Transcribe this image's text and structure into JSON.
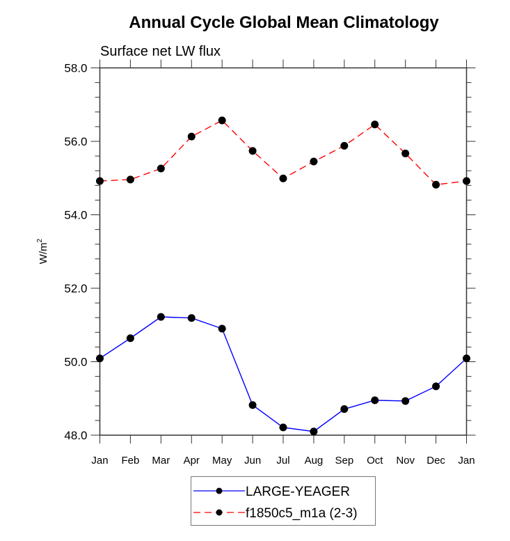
{
  "chart_data": {
    "type": "line",
    "title": "Annual Cycle Global Mean Climatology",
    "subtitle": "Surface net LW flux",
    "xlabel": "",
    "ylabel": "W/m",
    "ylabel_superscript": "2",
    "categories": [
      "Jan",
      "Feb",
      "Mar",
      "Apr",
      "May",
      "Jun",
      "Jul",
      "Aug",
      "Sep",
      "Oct",
      "Nov",
      "Dec",
      "Jan"
    ],
    "ylim": [
      48.0,
      58.0
    ],
    "yticks": [
      "48.0",
      "50.0",
      "52.0",
      "54.0",
      "56.0",
      "58.0"
    ],
    "ytick_values": [
      48,
      50,
      52,
      54,
      56,
      58
    ],
    "yminor_step": 0.4,
    "grid": false,
    "legend_position": "bottom-center",
    "series": [
      {
        "name": "LARGE-YEAGER",
        "color": "#0000ff",
        "dash": "solid",
        "marker": "filled-circle",
        "values": [
          50.09,
          50.64,
          51.22,
          51.19,
          50.9,
          48.82,
          48.21,
          48.1,
          48.71,
          48.95,
          48.93,
          49.33,
          50.09
        ]
      },
      {
        "name": "f1850c5_m1a (2-3)",
        "color": "#ff0000",
        "dash": "dashed",
        "marker": "filled-circle",
        "values": [
          54.92,
          54.96,
          55.26,
          56.13,
          56.57,
          55.74,
          54.99,
          55.45,
          55.88,
          56.46,
          55.67,
          54.82,
          54.92
        ]
      }
    ]
  }
}
